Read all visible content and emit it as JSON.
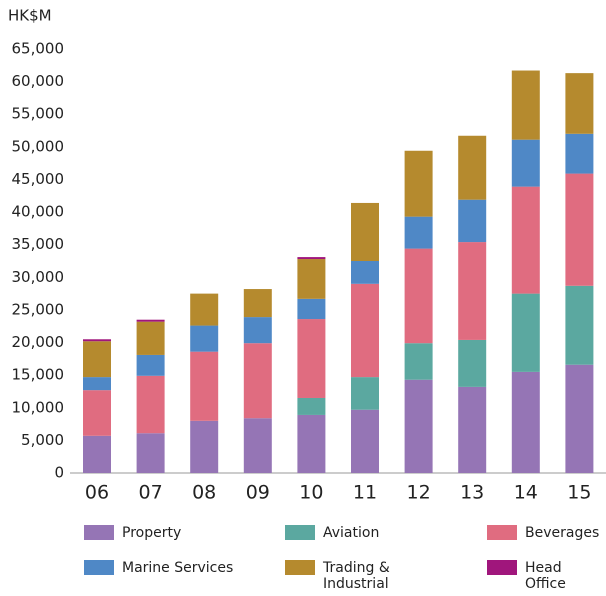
{
  "chart_data": {
    "type": "stacked_bar",
    "y_label": "HK$M",
    "categories": [
      "06",
      "07",
      "08",
      "09",
      "10",
      "11",
      "12",
      "13",
      "14",
      "15"
    ],
    "series": [
      {
        "name": "Property",
        "color": "#9575b5",
        "values": [
          5700,
          6100,
          8000,
          8400,
          8900,
          9700,
          14300,
          13200,
          15500,
          16600
        ]
      },
      {
        "name": "Aviation",
        "color": "#5ba8a0",
        "values": [
          0,
          0,
          0,
          0,
          2600,
          5000,
          5600,
          7200,
          12000,
          12100
        ]
      },
      {
        "name": "Beverages",
        "color": "#e06c80",
        "values": [
          7000,
          8800,
          10600,
          11500,
          12100,
          14300,
          14500,
          15000,
          16400,
          17200
        ]
      },
      {
        "name": "Marine Services",
        "color": "#4f88c6",
        "values": [
          2000,
          3200,
          4000,
          4000,
          3100,
          3500,
          4900,
          6500,
          7200,
          6100
        ]
      },
      {
        "name": "Trading & Industrial",
        "color": "#b58a2e",
        "values": [
          5500,
          5100,
          4900,
          4300,
          6100,
          8900,
          10100,
          9800,
          10600,
          9300
        ]
      },
      {
        "name": "Head Office",
        "color": "#a0167c",
        "values": [
          300,
          300,
          0,
          0,
          300,
          0,
          0,
          0,
          0,
          0
        ]
      }
    ],
    "ylim": [
      0,
      65000
    ],
    "yticks": [
      0,
      {
        "value": 5000,
        "label": "5,000"
      },
      {
        "value": 10000,
        "label": "10,000"
      },
      {
        "value": 15000,
        "label": "15,000"
      },
      {
        "value": 20000,
        "label": "20,000"
      },
      {
        "value": 25000,
        "label": "25,000"
      },
      {
        "value": 30000,
        "label": "30,000"
      },
      {
        "value": 35000,
        "label": "35,000"
      },
      {
        "value": 40000,
        "label": "40,000"
      },
      {
        "value": 45000,
        "label": "45,000"
      },
      {
        "value": 50000,
        "label": "50,000"
      },
      {
        "value": 55000,
        "label": "55,000"
      },
      {
        "value": 60000,
        "label": "60,000"
      },
      {
        "value": 65000,
        "label": "65,000"
      }
    ],
    "grid": false,
    "legend": "bottom"
  }
}
